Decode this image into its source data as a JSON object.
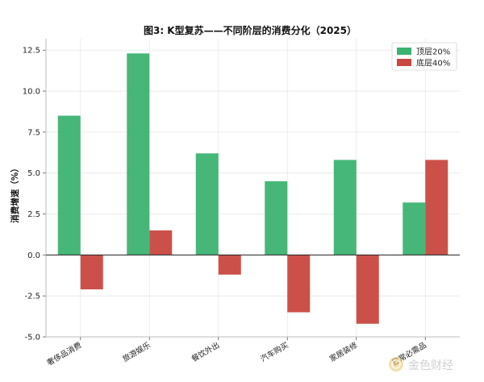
{
  "chart_data": {
    "type": "bar",
    "title": "图3: K型复苏——不同阶层的消费分化（2025）",
    "xlabel": "",
    "ylabel": "消费增速（%）",
    "ylim": [
      -5.0,
      13.2
    ],
    "yticks": [
      -5.0,
      -2.5,
      0.0,
      2.5,
      5.0,
      7.5,
      10.0,
      12.5
    ],
    "ytick_labels": [
      "-5.0",
      "-2.5",
      "0.0",
      "2.5",
      "5.0",
      "7.5",
      "10.0",
      "12.5"
    ],
    "grid": true,
    "legend_position": "top-right",
    "categories": [
      "奢侈品消费",
      "旅游娱乐",
      "餐饮外出",
      "汽车购买",
      "家居装修",
      "日常必需品"
    ],
    "series": [
      {
        "name": "顶层20%",
        "color": "#3cb371",
        "values": [
          8.5,
          12.3,
          6.2,
          4.5,
          5.8,
          3.2
        ]
      },
      {
        "name": "底层40%",
        "color": "#c94740",
        "values": [
          -2.1,
          1.5,
          -1.2,
          -3.5,
          -4.2,
          5.8
        ]
      }
    ]
  },
  "watermark": {
    "text": "金色财经",
    "icon": "coin-logo-icon"
  }
}
